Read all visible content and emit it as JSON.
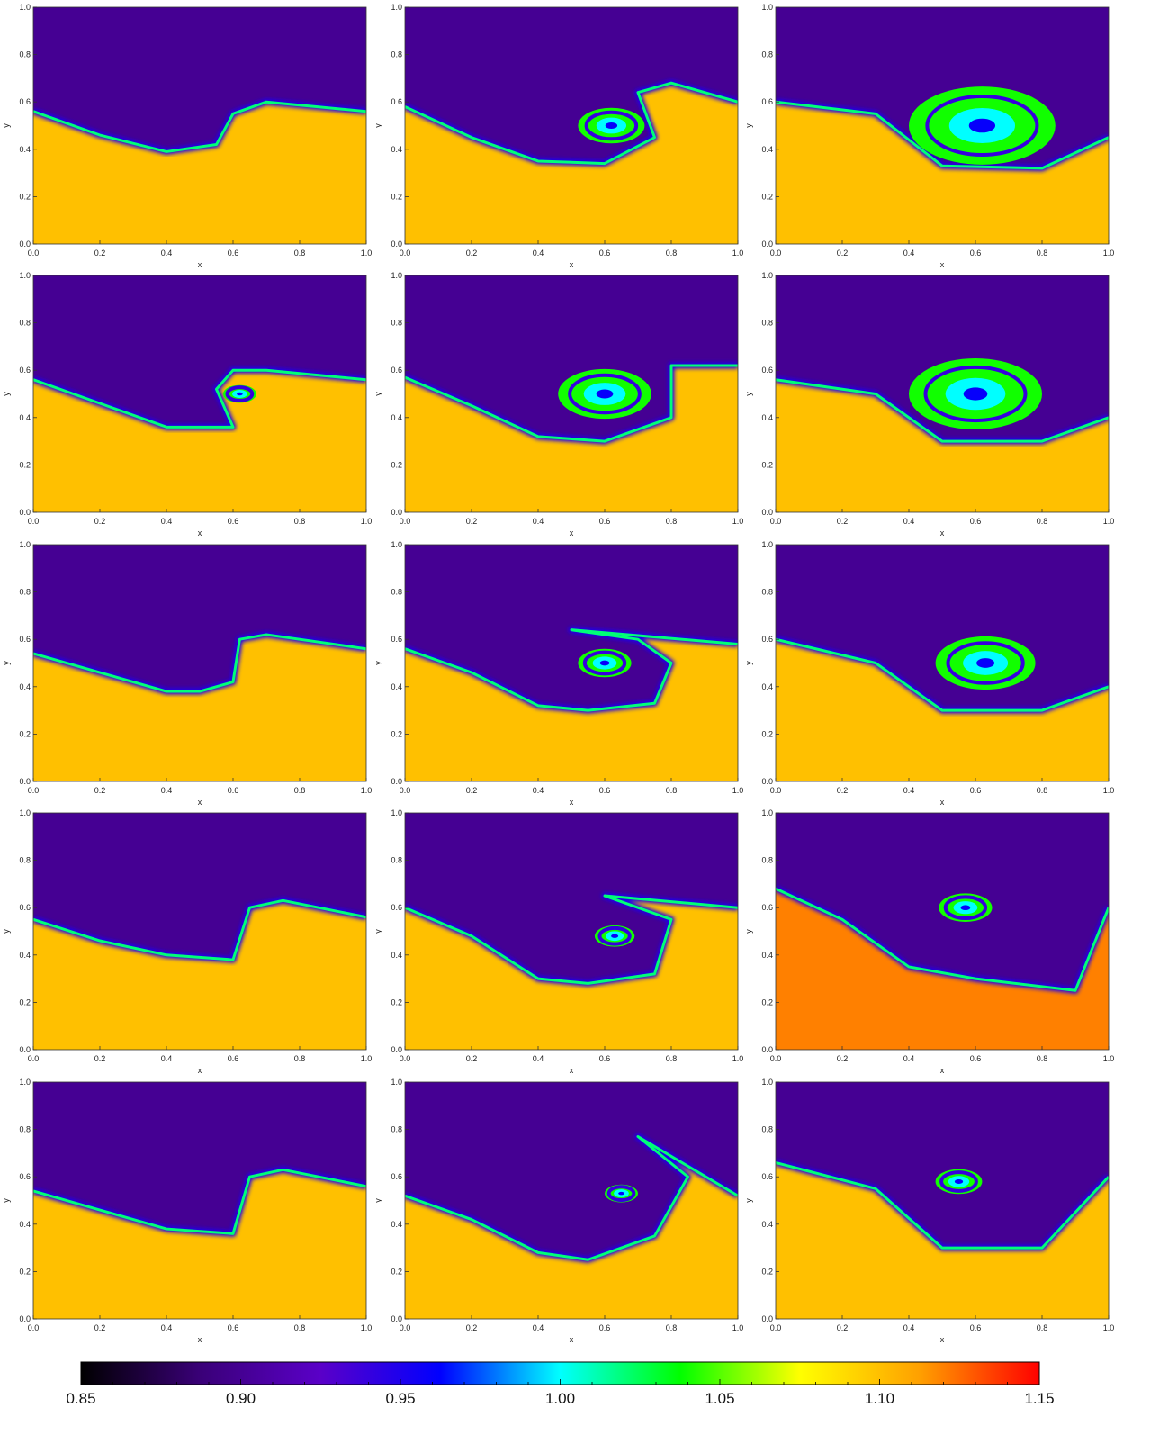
{
  "chart_data": {
    "type": "heatmap",
    "layout": {
      "rows": 5,
      "cols": 3
    },
    "colormap": [
      "#000000",
      "#3a0078",
      "#5a00c8",
      "#0000ff",
      "#00ffff",
      "#00ff00",
      "#ffff00",
      "#ffa000",
      "#ff0000"
    ],
    "colorbar": {
      "min": 0.85,
      "max": 1.15,
      "labels": [
        "0.85",
        "0.90",
        "0.95",
        "1.00",
        "1.05",
        "1.10",
        "1.15"
      ]
    },
    "xlabel": "x",
    "ylabel": "y",
    "xlim": [
      0,
      1
    ],
    "ylim": [
      0,
      1
    ],
    "xticks": [
      "0.0",
      "0.2",
      "0.4",
      "0.6",
      "0.8",
      "1.0"
    ],
    "yticks": [
      "0.0",
      "0.2",
      "0.4",
      "0.6",
      "0.8",
      "1.0"
    ],
    "panels": [
      {
        "row": 1,
        "col": 1,
        "upper_value": 0.9,
        "lower_value": 1.1,
        "interface": [
          [
            0,
            0.56
          ],
          [
            0.2,
            0.46
          ],
          [
            0.4,
            0.39
          ],
          [
            0.55,
            0.42
          ],
          [
            0.6,
            0.55
          ],
          [
            0.7,
            0.6
          ],
          [
            1,
            0.56
          ]
        ],
        "vortex": null
      },
      {
        "row": 1,
        "col": 2,
        "upper_value": 0.9,
        "lower_value": 1.1,
        "interface": [
          [
            0,
            0.58
          ],
          [
            0.2,
            0.45
          ],
          [
            0.4,
            0.35
          ],
          [
            0.6,
            0.34
          ],
          [
            0.75,
            0.45
          ],
          [
            0.7,
            0.64
          ],
          [
            0.8,
            0.68
          ],
          [
            1,
            0.6
          ]
        ],
        "vortex": {
          "cx": 0.62,
          "cy": 0.5,
          "r": 0.1,
          "core": 1.0
        }
      },
      {
        "row": 1,
        "col": 3,
        "upper_value": 0.9,
        "lower_value": 1.1,
        "interface": [
          [
            0,
            0.6
          ],
          [
            0.3,
            0.55
          ],
          [
            0.5,
            0.33
          ],
          [
            0.8,
            0.32
          ],
          [
            1,
            0.45
          ]
        ],
        "vortex": {
          "cx": 0.62,
          "cy": 0.5,
          "r": 0.22,
          "core": 1.0
        }
      },
      {
        "row": 2,
        "col": 1,
        "upper_value": 0.9,
        "lower_value": 1.1,
        "interface": [
          [
            0,
            0.56
          ],
          [
            0.2,
            0.46
          ],
          [
            0.4,
            0.36
          ],
          [
            0.6,
            0.36
          ],
          [
            0.55,
            0.52
          ],
          [
            0.6,
            0.6
          ],
          [
            0.7,
            0.6
          ],
          [
            1,
            0.56
          ]
        ],
        "vortex": {
          "cx": 0.62,
          "cy": 0.5,
          "r": 0.05,
          "core": 1.0
        }
      },
      {
        "row": 2,
        "col": 2,
        "upper_value": 0.9,
        "lower_value": 1.1,
        "interface": [
          [
            0,
            0.57
          ],
          [
            0.2,
            0.45
          ],
          [
            0.4,
            0.32
          ],
          [
            0.6,
            0.3
          ],
          [
            0.8,
            0.4
          ],
          [
            0.8,
            0.62
          ],
          [
            1,
            0.62
          ]
        ],
        "vortex": {
          "cx": 0.6,
          "cy": 0.5,
          "r": 0.14,
          "core": 1.0
        }
      },
      {
        "row": 2,
        "col": 3,
        "upper_value": 0.9,
        "lower_value": 1.1,
        "interface": [
          [
            0,
            0.56
          ],
          [
            0.3,
            0.5
          ],
          [
            0.5,
            0.3
          ],
          [
            0.8,
            0.3
          ],
          [
            1,
            0.4
          ]
        ],
        "vortex": {
          "cx": 0.6,
          "cy": 0.5,
          "r": 0.2,
          "core": 1.0
        }
      },
      {
        "row": 3,
        "col": 1,
        "upper_value": 0.9,
        "lower_value": 1.1,
        "interface": [
          [
            0,
            0.54
          ],
          [
            0.2,
            0.46
          ],
          [
            0.4,
            0.38
          ],
          [
            0.5,
            0.38
          ],
          [
            0.6,
            0.42
          ],
          [
            0.62,
            0.6
          ],
          [
            0.7,
            0.62
          ],
          [
            1,
            0.56
          ]
        ],
        "vortex": null
      },
      {
        "row": 3,
        "col": 2,
        "upper_value": 0.9,
        "lower_value": 1.1,
        "interface": [
          [
            0,
            0.56
          ],
          [
            0.2,
            0.46
          ],
          [
            0.4,
            0.32
          ],
          [
            0.55,
            0.3
          ],
          [
            0.75,
            0.33
          ],
          [
            0.8,
            0.5
          ],
          [
            0.7,
            0.6
          ],
          [
            0.5,
            0.64
          ],
          [
            1,
            0.58
          ]
        ],
        "vortex": {
          "cx": 0.6,
          "cy": 0.5,
          "r": 0.08,
          "core": 1.0
        }
      },
      {
        "row": 3,
        "col": 3,
        "upper_value": 0.9,
        "lower_value": 1.1,
        "interface": [
          [
            0,
            0.6
          ],
          [
            0.3,
            0.5
          ],
          [
            0.5,
            0.3
          ],
          [
            0.8,
            0.3
          ],
          [
            1,
            0.4
          ]
        ],
        "vortex": {
          "cx": 0.63,
          "cy": 0.5,
          "r": 0.15,
          "core": 1.0
        }
      },
      {
        "row": 4,
        "col": 1,
        "upper_value": 0.9,
        "lower_value": 1.1,
        "interface": [
          [
            0,
            0.55
          ],
          [
            0.2,
            0.46
          ],
          [
            0.4,
            0.4
          ],
          [
            0.6,
            0.38
          ],
          [
            0.65,
            0.6
          ],
          [
            0.75,
            0.63
          ],
          [
            1,
            0.56
          ]
        ],
        "vortex": null
      },
      {
        "row": 4,
        "col": 2,
        "upper_value": 0.9,
        "lower_value": 1.1,
        "interface": [
          [
            0,
            0.6
          ],
          [
            0.2,
            0.48
          ],
          [
            0.4,
            0.3
          ],
          [
            0.55,
            0.28
          ],
          [
            0.75,
            0.32
          ],
          [
            0.8,
            0.55
          ],
          [
            0.6,
            0.65
          ],
          [
            1,
            0.6
          ]
        ],
        "vortex": {
          "cx": 0.63,
          "cy": 0.48,
          "r": 0.06,
          "core": 1.0
        }
      },
      {
        "row": 4,
        "col": 3,
        "upper_value": 0.9,
        "lower_value": 1.12,
        "interface": [
          [
            0,
            0.68
          ],
          [
            0.2,
            0.55
          ],
          [
            0.4,
            0.35
          ],
          [
            0.6,
            0.3
          ],
          [
            0.9,
            0.25
          ],
          [
            1,
            0.6
          ]
        ],
        "vortex": {
          "cx": 0.57,
          "cy": 0.6,
          "r": 0.08,
          "core": 1.0
        }
      },
      {
        "row": 5,
        "col": 1,
        "upper_value": 0.9,
        "lower_value": 1.1,
        "interface": [
          [
            0,
            0.54
          ],
          [
            0.2,
            0.46
          ],
          [
            0.4,
            0.38
          ],
          [
            0.6,
            0.36
          ],
          [
            0.65,
            0.6
          ],
          [
            0.75,
            0.63
          ],
          [
            1,
            0.56
          ]
        ],
        "vortex": null
      },
      {
        "row": 5,
        "col": 2,
        "upper_value": 0.9,
        "lower_value": 1.1,
        "interface": [
          [
            0,
            0.52
          ],
          [
            0.2,
            0.42
          ],
          [
            0.4,
            0.28
          ],
          [
            0.55,
            0.25
          ],
          [
            0.75,
            0.35
          ],
          [
            0.85,
            0.6
          ],
          [
            0.7,
            0.77
          ],
          [
            1,
            0.52
          ]
        ],
        "vortex": {
          "cx": 0.65,
          "cy": 0.53,
          "r": 0.05,
          "core": 1.0
        }
      },
      {
        "row": 5,
        "col": 3,
        "upper_value": 0.9,
        "lower_value": 1.1,
        "interface": [
          [
            0,
            0.66
          ],
          [
            0.3,
            0.55
          ],
          [
            0.5,
            0.3
          ],
          [
            0.8,
            0.3
          ],
          [
            1,
            0.6
          ]
        ],
        "vortex": {
          "cx": 0.55,
          "cy": 0.58,
          "r": 0.07,
          "core": 1.0
        }
      }
    ]
  }
}
